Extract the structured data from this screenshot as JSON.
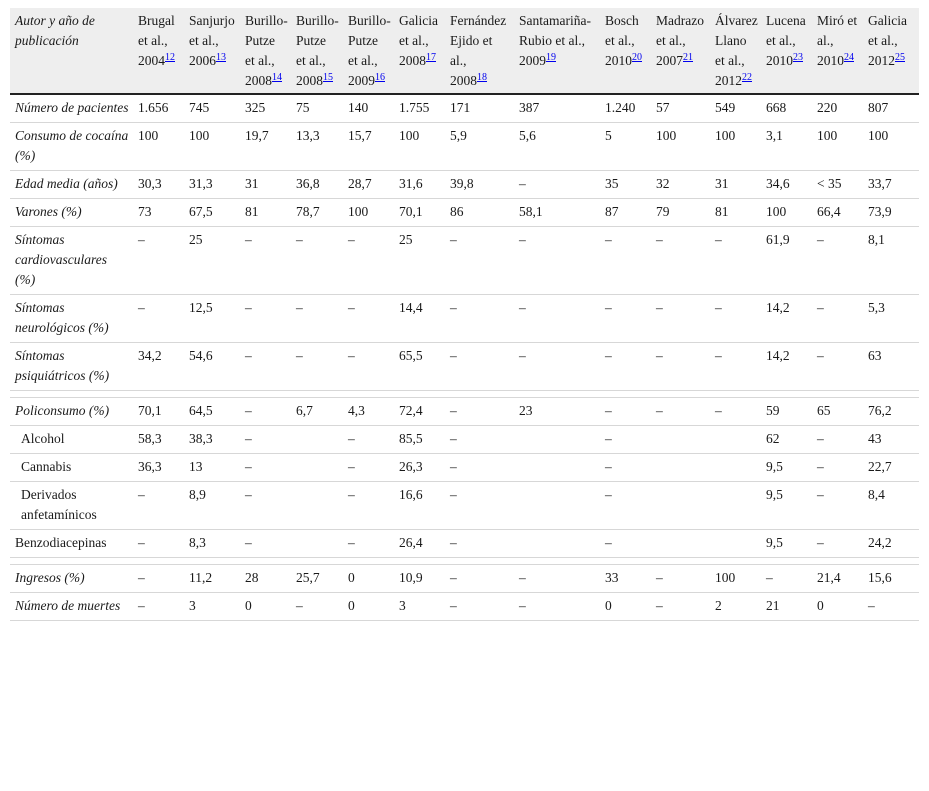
{
  "header": {
    "label": "Autor y año de publicación",
    "columns": [
      {
        "lines": [
          "Brugal",
          "et al.,",
          "2004"
        ],
        "ref": "12"
      },
      {
        "lines": [
          "Sanjurjo",
          "et al.,",
          "2006"
        ],
        "ref": "13"
      },
      {
        "lines": [
          "Burillo-",
          "Putze",
          "et al.,",
          "2008"
        ],
        "ref": "14"
      },
      {
        "lines": [
          "Burillo-",
          "Putze",
          "et al.,",
          "2008"
        ],
        "ref": "15"
      },
      {
        "lines": [
          "Burillo-",
          "Putze",
          "et al.,",
          "2009"
        ],
        "ref": "16"
      },
      {
        "lines": [
          "Galicia",
          "et al.,",
          "2008"
        ],
        "ref": "17"
      },
      {
        "lines": [
          "Fernández",
          "Ejido et",
          "al.,",
          "2008"
        ],
        "ref": "18"
      },
      {
        "lines": [
          "Santamariña-",
          "Rubio et al.,",
          "2009"
        ],
        "ref": "19"
      },
      {
        "lines": [
          "Bosch",
          "et al.,",
          "2010"
        ],
        "ref": "20"
      },
      {
        "lines": [
          "Madrazo",
          "et al.,",
          "2007"
        ],
        "ref": "21"
      },
      {
        "lines": [
          "Álvarez",
          "Llano",
          "et al.,",
          "2012"
        ],
        "ref": "22"
      },
      {
        "lines": [
          "Lucena",
          "et al.,",
          "2010"
        ],
        "ref": "23"
      },
      {
        "lines": [
          "Miró et",
          "al.,",
          "2010"
        ],
        "ref": "24"
      },
      {
        "lines": [
          "Galicia",
          "et al.,",
          "2012"
        ],
        "ref": "25"
      }
    ]
  },
  "rows": [
    {
      "label": "Número de pacientes",
      "italic": true,
      "sub": false,
      "values": [
        "1.656",
        "745",
        "325",
        "75",
        "140",
        "1.755",
        "171",
        "387",
        "1.240",
        "57",
        "549",
        "668",
        "220",
        "807"
      ]
    },
    {
      "label": "Consumo de cocaína (%)",
      "italic": true,
      "sub": false,
      "values": [
        "100",
        "100",
        "19,7",
        "13,3",
        "15,7",
        "100",
        "5,9",
        "5,6",
        "5",
        "100",
        "100",
        "3,1",
        "100",
        "100"
      ]
    },
    {
      "label": "Edad media (años)",
      "italic": true,
      "sub": false,
      "values": [
        "30,3",
        "31,3",
        "31",
        "36,8",
        "28,7",
        "31,6",
        "39,8",
        "–",
        "35",
        "32",
        "31",
        "34,6",
        "< 35",
        "33,7"
      ]
    },
    {
      "label": "Varones (%)",
      "italic": true,
      "sub": false,
      "values": [
        "73",
        "67,5",
        "81",
        "78,7",
        "100",
        "70,1",
        "86",
        "58,1",
        "87",
        "79",
        "81",
        "100",
        "66,4",
        "73,9"
      ]
    },
    {
      "label": "Síntomas cardiovasculares (%)",
      "italic": true,
      "sub": false,
      "values": [
        "–",
        "25",
        "–",
        "–",
        "–",
        "25",
        "–",
        "–",
        "–",
        "–",
        "–",
        "61,9",
        "–",
        "8,1"
      ]
    },
    {
      "label": "Síntomas neurológicos (%)",
      "italic": true,
      "sub": false,
      "values": [
        "–",
        "12,5",
        "–",
        "–",
        "–",
        "14,4",
        "–",
        "–",
        "–",
        "–",
        "–",
        "14,2",
        "–",
        "5,3"
      ]
    },
    {
      "label": "Síntomas psiquiátricos (%)",
      "italic": true,
      "sub": false,
      "values": [
        "34,2",
        "54,6",
        "–",
        "–",
        "–",
        "65,5",
        "–",
        "–",
        "–",
        "–",
        "–",
        "14,2",
        "–",
        "63"
      ]
    },
    {
      "spacer": true
    },
    {
      "label": "Policonsumo (%)",
      "italic": true,
      "sub": false,
      "values": [
        "70,1",
        "64,5",
        "–",
        "6,7",
        "4,3",
        "72,4",
        "–",
        "23",
        "–",
        "–",
        "–",
        "59",
        "65",
        "76,2"
      ]
    },
    {
      "label": "Alcohol",
      "italic": false,
      "sub": true,
      "values": [
        "58,3",
        "38,3",
        "–",
        "",
        "–",
        "85,5",
        "–",
        "",
        "–",
        "",
        "",
        "62",
        "–",
        "43"
      ]
    },
    {
      "label": "Cannabis",
      "italic": false,
      "sub": true,
      "values": [
        "36,3",
        "13",
        "–",
        "",
        "–",
        "26,3",
        "–",
        "",
        "–",
        "",
        "",
        "9,5",
        "–",
        "22,7"
      ]
    },
    {
      "label": "Derivados anfetamínicos",
      "italic": false,
      "sub": true,
      "values": [
        "–",
        "8,9",
        "–",
        "",
        "–",
        "16,6",
        "–",
        "",
        "–",
        "",
        "",
        "9,5",
        "–",
        "8,4"
      ]
    },
    {
      "label": "Benzodiacepinas",
      "italic": false,
      "sub": false,
      "values": [
        "–",
        "8,3",
        "–",
        "",
        "–",
        "26,4",
        "–",
        "",
        "–",
        "",
        "",
        "9,5",
        "–",
        "24,2"
      ]
    },
    {
      "spacer": true
    },
    {
      "label": "Ingresos (%)",
      "italic": true,
      "sub": false,
      "values": [
        "–",
        "11,2",
        "28",
        "25,7",
        "0",
        "10,9",
        "–",
        "–",
        "33",
        "–",
        "100",
        "–",
        "21,4",
        "15,6"
      ]
    },
    {
      "label": "Número de muertes",
      "italic": true,
      "sub": false,
      "values": [
        "–",
        "3",
        "0",
        "–",
        "0",
        "3",
        "–",
        "–",
        "0",
        "–",
        "2",
        "21",
        "0",
        "–"
      ]
    }
  ]
}
